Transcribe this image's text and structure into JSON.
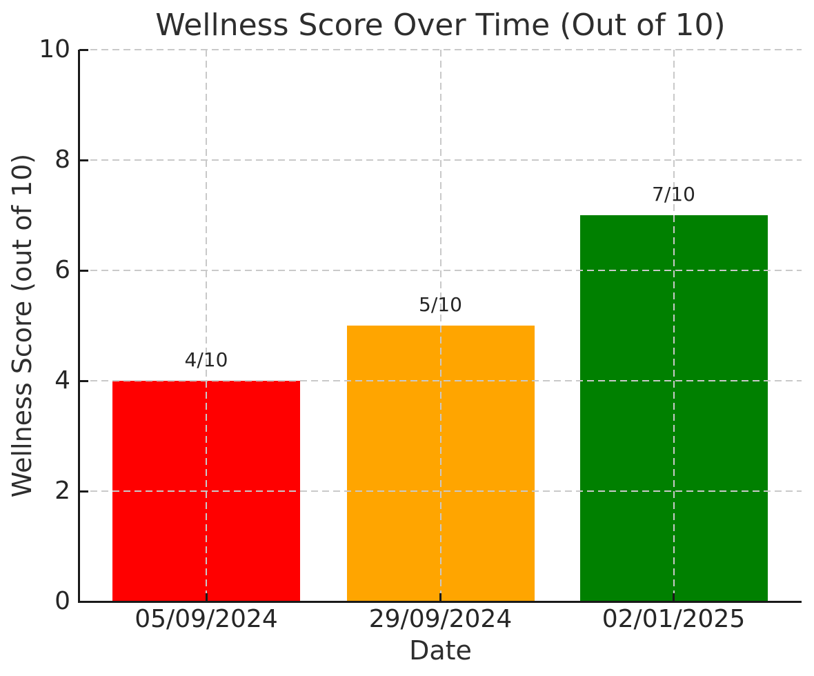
{
  "chart_data": {
    "type": "bar",
    "title": "Wellness Score Over Time (Out of 10)",
    "xlabel": "Date",
    "ylabel": "Wellness Score (out of 10)",
    "categories": [
      "05/09/2024",
      "29/09/2024",
      "02/01/2025"
    ],
    "values": [
      4,
      5,
      7
    ],
    "bar_labels": [
      "4/10",
      "5/10",
      "7/10"
    ],
    "bar_colors": [
      "#ff0000",
      "#ffa500",
      "#008000"
    ],
    "ylim": [
      0,
      10
    ],
    "yticks": [
      0,
      2,
      4,
      6,
      8,
      10
    ],
    "grid": {
      "style": "dashed",
      "color": "#c9c9c9",
      "drawn_above_bars": true,
      "horizontal_at": [
        2,
        4,
        6,
        8,
        10
      ],
      "vertical_at_bar_centers": true
    },
    "legend": "none",
    "colors": {
      "text": "#262626",
      "spine": "#1a1a1a",
      "background": "#ffffff"
    }
  }
}
